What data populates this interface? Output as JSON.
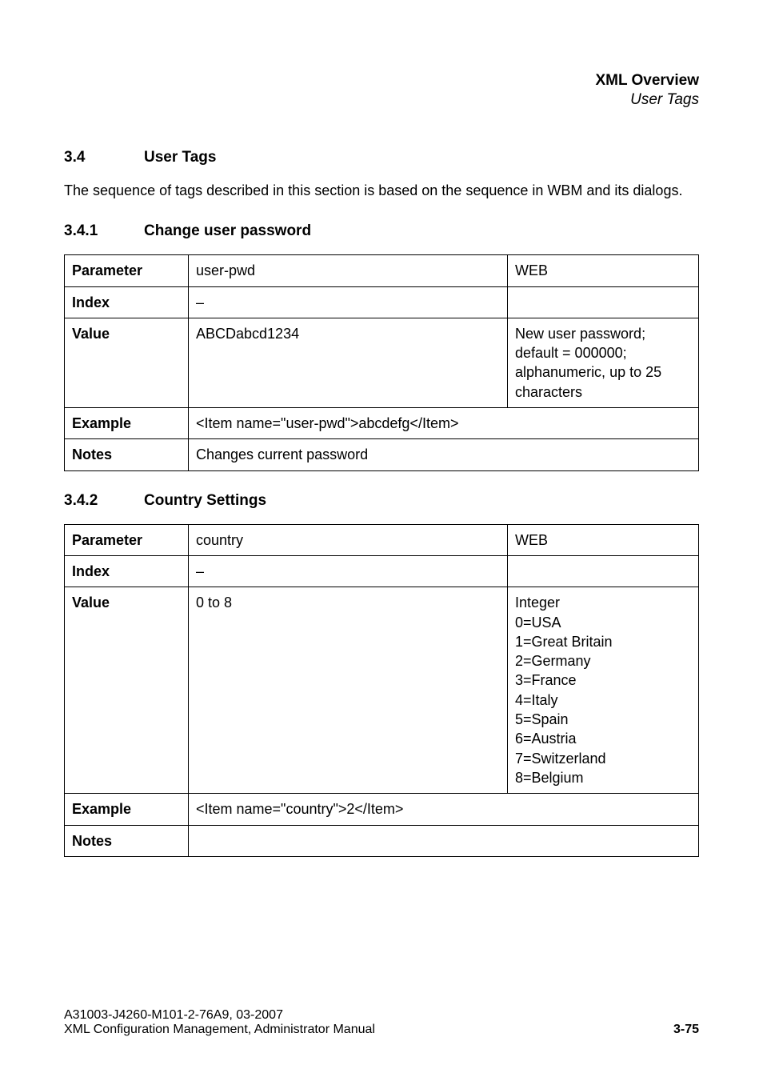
{
  "header": {
    "title_bold": "XML Overview",
    "title_italic": "User Tags"
  },
  "sec_main": {
    "num": "3.4",
    "title": "User Tags",
    "intro": "The sequence of tags described in this section is based on the sequence in WBM and its dialogs."
  },
  "sec_1": {
    "num": "3.4.1",
    "title": "Change user password",
    "table": {
      "parameter_label": "Parameter",
      "parameter_name": "user-pwd",
      "parameter_scope": "WEB",
      "index_label": "Index",
      "index_val": "–",
      "value_label": "Value",
      "value_val": "ABCDabcd1234",
      "value_desc": "New user password; default = 000000; alphanumeric, up to 25 characters",
      "example_label": "Example",
      "example_val": "<Item name=\"user-pwd\">abcdefg</Item>",
      "notes_label": "Notes",
      "notes_val": "Changes current password"
    }
  },
  "sec_2": {
    "num": "3.4.2",
    "title": "Country Settings",
    "table": {
      "parameter_label": "Parameter",
      "parameter_name": "country",
      "parameter_scope": "WEB",
      "index_label": "Index",
      "index_val": "–",
      "value_label": "Value",
      "value_val": "0 to 8",
      "value_desc": "Integer\n0=USA\n1=Great Britain\n2=Germany\n3=France\n4=Italy\n5=Spain\n6=Austria\n7=Switzerland\n8=Belgium",
      "example_label": "Example",
      "example_val": "<Item name=\"country\">2</Item>",
      "notes_label": "Notes",
      "notes_val": ""
    }
  },
  "footer": {
    "line1": "A31003-J4260-M101-2-76A9, 03-2007",
    "line2": "XML Configuration Management, Administrator Manual",
    "page": "3-75"
  }
}
